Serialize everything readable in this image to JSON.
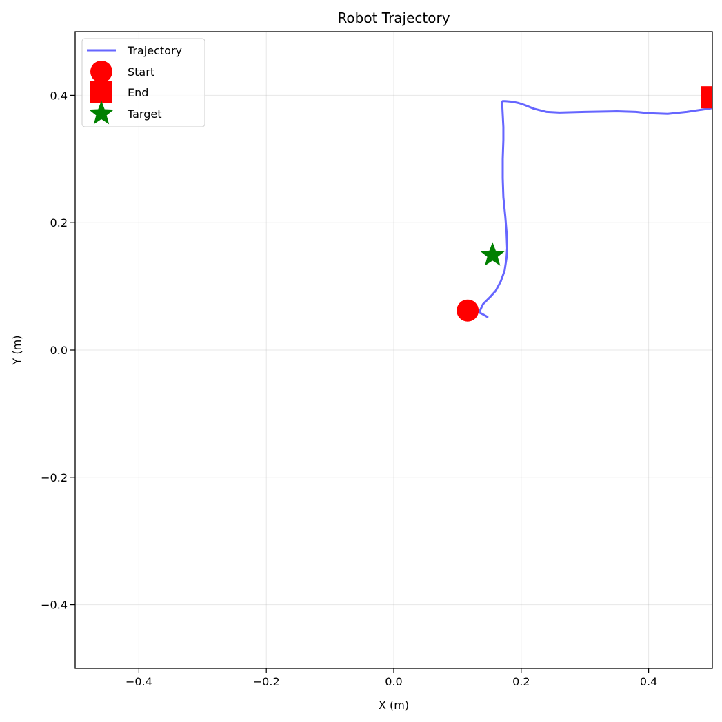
{
  "chart_data": {
    "type": "line",
    "title": "Robot Trajectory",
    "xlabel": "X (m)",
    "ylabel": "Y (m)",
    "xlim": [
      -0.5,
      0.5
    ],
    "ylim": [
      -0.5,
      0.5
    ],
    "grid": true,
    "legend_position": "top-left",
    "x_ticks": [
      -0.4,
      -0.2,
      0.0,
      0.2,
      0.4
    ],
    "x_tick_labels": [
      "−0.4",
      "−0.2",
      "0.0",
      "0.2",
      "0.4"
    ],
    "y_ticks": [
      -0.4,
      -0.2,
      0.0,
      0.2,
      0.4
    ],
    "y_tick_labels": [
      "−0.4",
      "−0.2",
      "0.0",
      "0.2",
      "0.4"
    ],
    "series": [
      {
        "name": "Trajectory",
        "kind": "line",
        "color": "#6666ff",
        "x": [
          0.147,
          0.14,
          0.134,
          0.14,
          0.151,
          0.16,
          0.168,
          0.174,
          0.177,
          0.178,
          0.177,
          0.175,
          0.172,
          0.171,
          0.171,
          0.172,
          0.172,
          0.171,
          0.17,
          0.171,
          0.175,
          0.186,
          0.196,
          0.205,
          0.22,
          0.24,
          0.26,
          0.3,
          0.35,
          0.38,
          0.4,
          0.43,
          0.46,
          0.5
        ],
        "y": [
          0.052,
          0.056,
          0.059,
          0.072,
          0.083,
          0.093,
          0.108,
          0.125,
          0.145,
          0.16,
          0.185,
          0.21,
          0.24,
          0.27,
          0.3,
          0.33,
          0.35,
          0.37,
          0.39,
          0.391,
          0.391,
          0.39,
          0.388,
          0.385,
          0.379,
          0.374,
          0.373,
          0.374,
          0.375,
          0.374,
          0.372,
          0.371,
          0.374,
          0.38
        ]
      },
      {
        "name": "Start",
        "kind": "marker",
        "marker": "circle",
        "color": "#ff0000",
        "x": [
          0.116
        ],
        "y": [
          0.062
        ]
      },
      {
        "name": "End",
        "kind": "marker",
        "marker": "square",
        "color": "#ff0000",
        "x": [
          0.5
        ],
        "y": [
          0.397
        ]
      },
      {
        "name": "Target",
        "kind": "marker",
        "marker": "star",
        "color": "#008000",
        "x": [
          0.155
        ],
        "y": [
          0.149
        ]
      }
    ]
  }
}
